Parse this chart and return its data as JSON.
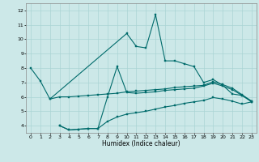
{
  "xlabel": "Humidex (Indice chaleur)",
  "bg_color": "#cce8e8",
  "grid_color": "#aad4d4",
  "line_color": "#006b6b",
  "xlim": [
    -0.5,
    23.5
  ],
  "ylim": [
    3.5,
    12.5
  ],
  "xticks": [
    0,
    1,
    2,
    3,
    4,
    5,
    6,
    7,
    8,
    9,
    10,
    11,
    12,
    13,
    14,
    15,
    16,
    17,
    18,
    19,
    20,
    21,
    22,
    23
  ],
  "yticks": [
    4,
    5,
    6,
    7,
    8,
    9,
    10,
    11,
    12
  ],
  "series": [
    {
      "x": [
        0,
        1,
        2,
        10,
        11,
        12,
        13,
        14,
        15,
        16,
        17,
        18,
        19,
        20,
        21,
        22,
        23
      ],
      "y": [
        8.0,
        7.1,
        5.85,
        10.4,
        9.5,
        9.4,
        11.7,
        8.5,
        8.5,
        8.3,
        8.1,
        7.0,
        7.2,
        6.8,
        6.2,
        6.1,
        5.7
      ]
    },
    {
      "x": [
        2,
        3,
        4,
        5,
        6,
        7,
        8,
        9,
        10,
        11,
        12,
        13,
        14,
        15,
        16,
        17,
        18,
        19,
        20,
        21,
        22,
        23
      ],
      "y": [
        5.85,
        6.0,
        6.0,
        6.05,
        6.1,
        6.15,
        6.2,
        6.25,
        6.35,
        6.4,
        6.45,
        6.5,
        6.55,
        6.65,
        6.7,
        6.75,
        6.8,
        7.05,
        6.85,
        6.6,
        6.15,
        5.7
      ]
    },
    {
      "x": [
        3,
        4,
        5,
        6,
        7,
        8,
        9,
        10,
        11,
        12,
        13,
        14,
        15,
        16,
        17,
        18,
        19,
        20,
        21,
        22,
        23
      ],
      "y": [
        4.0,
        3.7,
        3.75,
        3.8,
        3.8,
        6.0,
        8.1,
        6.3,
        6.25,
        6.3,
        6.35,
        6.45,
        6.5,
        6.55,
        6.6,
        6.75,
        6.95,
        6.75,
        6.5,
        6.1,
        5.65
      ]
    },
    {
      "x": [
        3,
        4,
        5,
        6,
        7,
        8,
        9,
        10,
        11,
        12,
        13,
        14,
        15,
        16,
        17,
        18,
        19,
        20,
        21,
        22,
        23
      ],
      "y": [
        4.0,
        3.7,
        3.75,
        3.8,
        3.8,
        4.3,
        4.6,
        4.8,
        4.9,
        5.0,
        5.15,
        5.3,
        5.4,
        5.55,
        5.65,
        5.75,
        5.95,
        5.85,
        5.7,
        5.5,
        5.65
      ]
    }
  ]
}
